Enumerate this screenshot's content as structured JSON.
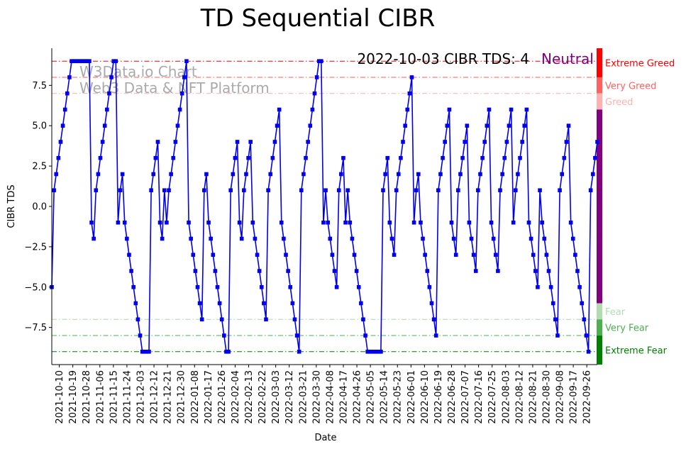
{
  "chart_data": {
    "type": "line",
    "title": "TD Sequential CIBR",
    "xlabel": "Date",
    "ylabel": "CIBR TDS",
    "ylim": [
      -9.8,
      9.8
    ],
    "y_ticks": [
      -7.5,
      -5.0,
      -2.5,
      0.0,
      2.5,
      5.0,
      7.5
    ],
    "y_tick_labels": [
      "−7.5",
      "−5.0",
      "−2.5",
      "0.0",
      "2.5",
      "5.0",
      "7.5"
    ],
    "x_start": "2021-10-05",
    "x_end": "2022-10-03",
    "x_tick_labels": [
      "2021-10-10",
      "2021-10-19",
      "2021-10-28",
      "2021-11-06",
      "2021-11-15",
      "2021-11-24",
      "2021-12-03",
      "2021-12-12",
      "2021-12-21",
      "2021-12-30",
      "2022-01-08",
      "2022-01-17",
      "2022-01-26",
      "2022-02-04",
      "2022-02-13",
      "2022-02-22",
      "2022-03-03",
      "2022-03-12",
      "2022-03-21",
      "2022-03-30",
      "2022-04-08",
      "2022-04-17",
      "2022-04-26",
      "2022-05-05",
      "2022-05-14",
      "2022-05-23",
      "2022-06-01",
      "2022-06-10",
      "2022-06-19",
      "2022-06-28",
      "2022-07-07",
      "2022-07-16",
      "2022-07-25",
      "2022-08-03",
      "2022-08-12",
      "2022-08-21",
      "2022-08-30",
      "2022-09-08",
      "2022-09-17",
      "2022-09-26"
    ],
    "series": [
      {
        "color": "#0000ee",
        "marker": "square",
        "values": [
          -5,
          1,
          2,
          3,
          4,
          5,
          6,
          7,
          8,
          9,
          9,
          9,
          9,
          9,
          9,
          9,
          9,
          9,
          -1,
          -2,
          1,
          2,
          3,
          4,
          5,
          6,
          7,
          8,
          9,
          9,
          -1,
          1,
          2,
          -1,
          -2,
          -3,
          -4,
          -5,
          -6,
          -7,
          -8,
          -9,
          -9,
          -9,
          -9,
          1,
          2,
          3,
          4,
          -1,
          -2,
          1,
          -1,
          1,
          2,
          3,
          4,
          5,
          6,
          7,
          8,
          9,
          -1,
          -2,
          -3,
          -4,
          -5,
          -6,
          -7,
          1,
          2,
          -1,
          -2,
          -3,
          -4,
          -5,
          -6,
          -7,
          -8,
          -9,
          -9,
          1,
          2,
          3,
          4,
          -1,
          -2,
          1,
          2,
          3,
          4,
          -1,
          -2,
          -3,
          -4,
          -5,
          -6,
          -7,
          1,
          2,
          3,
          4,
          5,
          6,
          -1,
          -2,
          -3,
          -4,
          -5,
          -6,
          -7,
          -8,
          -9,
          1,
          2,
          3,
          4,
          5,
          6,
          7,
          8,
          9,
          9,
          -1,
          1,
          -1,
          -2,
          -3,
          -4,
          -5,
          1,
          2,
          3,
          -1,
          1,
          -1,
          -2,
          -3,
          -4,
          -5,
          -6,
          -7,
          -8,
          -9,
          -9,
          -9,
          -9,
          -9,
          -9,
          -9,
          1,
          2,
          3,
          -1,
          -2,
          -3,
          1,
          2,
          3,
          4,
          5,
          6,
          7,
          8,
          -1,
          1,
          2,
          -1,
          -2,
          -3,
          -4,
          -5,
          -6,
          -7,
          -8,
          1,
          2,
          3,
          4,
          5,
          6,
          -1,
          -2,
          -3,
          1,
          2,
          3,
          4,
          5,
          -1,
          -2,
          -3,
          -4,
          1,
          2,
          3,
          4,
          5,
          6,
          -1,
          -2,
          -3,
          -4,
          1,
          2,
          3,
          4,
          5,
          6,
          -1,
          1,
          2,
          3,
          4,
          5,
          6,
          -1,
          -2,
          -3,
          -4,
          -5,
          1,
          -1,
          -2,
          -3,
          -4,
          -5,
          -6,
          -7,
          -8,
          1,
          2,
          3,
          4,
          5,
          -1,
          -2,
          -3,
          -4,
          -5,
          -6,
          -7,
          -8,
          -9,
          1,
          2,
          3,
          4
        ]
      }
    ],
    "thresholds": [
      {
        "value": 9,
        "color": "#e8000b"
      },
      {
        "value": 8,
        "color": "#ff5a5a"
      },
      {
        "value": 7,
        "color": "#ffaaaa"
      },
      {
        "value": -7,
        "color": "#a8d8a8"
      },
      {
        "value": -8,
        "color": "#4caf50"
      },
      {
        "value": -9,
        "color": "#007a00"
      }
    ],
    "zones": [
      {
        "label": "Extreme Greed",
        "color": "#ff0000",
        "from": 8,
        "to": 9.8
      },
      {
        "label": "Very Greed",
        "color": "#ff6060",
        "from": 7,
        "to": 8
      },
      {
        "label": "Greed",
        "color": "#ffb0b0",
        "from": 6,
        "to": 7
      },
      {
        "label": "",
        "color": "#800080",
        "from": -6,
        "to": 6
      },
      {
        "label": "Fear",
        "color": "#b0dcb0",
        "from": -7,
        "to": -6
      },
      {
        "label": "Very Fear",
        "color": "#4caf50",
        "from": -8,
        "to": -7
      },
      {
        "label": "Extreme Fear",
        "color": "#008000",
        "from": -9.8,
        "to": -8
      }
    ],
    "status_text": "2022-10-03 CIBR TDS: 4",
    "status_label": "Neutral",
    "status_color": "#800080",
    "watermark_line1": "W3Data.io Chart",
    "watermark_line2": "Web3 Data & NFT Platform"
  }
}
